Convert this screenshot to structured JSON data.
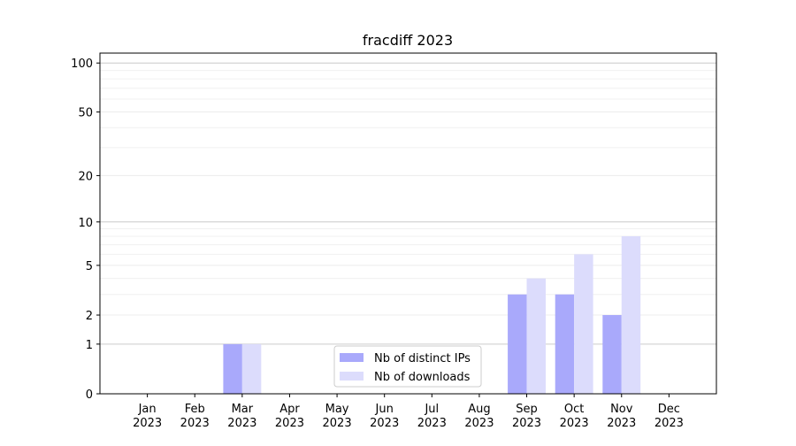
{
  "chart_data": {
    "type": "bar",
    "title": "fracdiff 2023",
    "categories": [
      [
        "Jan",
        "2023"
      ],
      [
        "Feb",
        "2023"
      ],
      [
        "Mar",
        "2023"
      ],
      [
        "Apr",
        "2023"
      ],
      [
        "May",
        "2023"
      ],
      [
        "Jun",
        "2023"
      ],
      [
        "Jul",
        "2023"
      ],
      [
        "Aug",
        "2023"
      ],
      [
        "Sep",
        "2023"
      ],
      [
        "Oct",
        "2023"
      ],
      [
        "Nov",
        "2023"
      ],
      [
        "Dec",
        "2023"
      ]
    ],
    "series": [
      {
        "name": "Nb of distinct IPs",
        "color": "#a9a9fb",
        "values": [
          0,
          0,
          1,
          0,
          0,
          0,
          0,
          0,
          3,
          3,
          2,
          0
        ]
      },
      {
        "name": "Nb of downloads",
        "color": "#dcdcfc",
        "values": [
          0,
          0,
          1,
          0,
          0,
          0,
          0,
          0,
          4,
          6,
          8,
          0
        ]
      }
    ],
    "yscale": "log1p",
    "ylim": [
      0,
      115
    ],
    "yticks": [
      0,
      1,
      2,
      5,
      10,
      20,
      50,
      100
    ],
    "grid": true,
    "major_grid": [
      1,
      10,
      100
    ],
    "minor_grid": [
      3,
      4,
      6,
      7,
      8,
      9,
      30,
      40,
      60,
      70,
      80,
      90
    ],
    "legend": "lower center"
  }
}
